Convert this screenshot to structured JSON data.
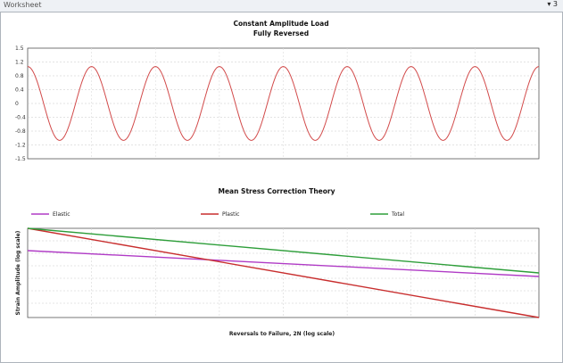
{
  "window": {
    "title": "Worksheet",
    "controls": "▾ 3"
  },
  "chart_data": [
    {
      "type": "line",
      "title": "Constant Amplitude Load",
      "subtitle": "Fully Reversed",
      "xlabel": "",
      "ylabel": "",
      "ylim": [
        -1.5,
        1.5
      ],
      "yticks": [
        "1.5",
        "1.2",
        "0.8",
        "0.4",
        "0",
        "-0.4",
        "-0.8",
        "-1.2",
        "-1.5"
      ],
      "grid": true,
      "series": [
        {
          "color": "#d24a4a",
          "function": "cos",
          "cycles": 8,
          "amplitude": 1.0
        }
      ]
    },
    {
      "type": "line",
      "title": "Mean Stress Correction Theory",
      "xlabel": "Reversals to Failure, 2N (log scale)",
      "ylabel": "Strain Amplitude (log scale)",
      "xscale": "log",
      "yscale": "log",
      "grid": true,
      "legend_position": "top",
      "x": [
        0,
        1
      ],
      "series": [
        {
          "name": "Elastic",
          "color": "#b03bc6",
          "values": [
            0.75,
            0.46
          ]
        },
        {
          "name": "Plastic",
          "color": "#c82e2e",
          "values": [
            1.0,
            0.0
          ]
        },
        {
          "name": "Total",
          "color": "#2e9e3a",
          "values": [
            1.0,
            0.5
          ]
        }
      ]
    }
  ]
}
